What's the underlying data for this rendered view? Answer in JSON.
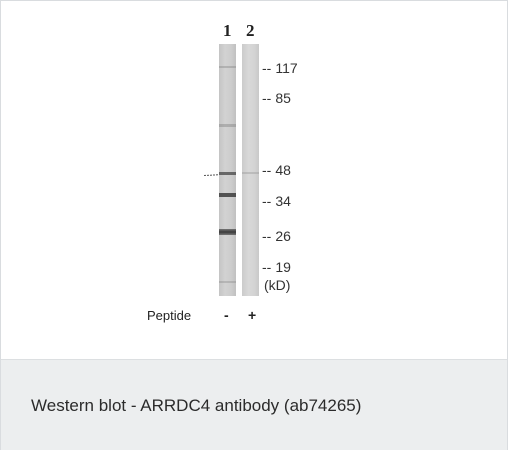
{
  "blot": {
    "lane_numbers": [
      "1",
      "2"
    ],
    "markers": [
      {
        "dash": "--",
        "value": "117"
      },
      {
        "dash": "--",
        "value": "85"
      },
      {
        "dash": "--",
        "value": "48"
      },
      {
        "dash": "--",
        "value": "34"
      },
      {
        "dash": "--",
        "value": "26"
      },
      {
        "dash": "--",
        "value": "19"
      }
    ],
    "unit": "(kD)",
    "peptide_label": "Peptide",
    "peptide_signs": [
      "-",
      "+"
    ],
    "arrow_marker": "arrow-icon"
  },
  "caption": "Western blot - ARRDC4 antibody (ab74265)",
  "colors": {
    "caption_background": "#eceeef",
    "band_dark": "#3a3a3a"
  }
}
